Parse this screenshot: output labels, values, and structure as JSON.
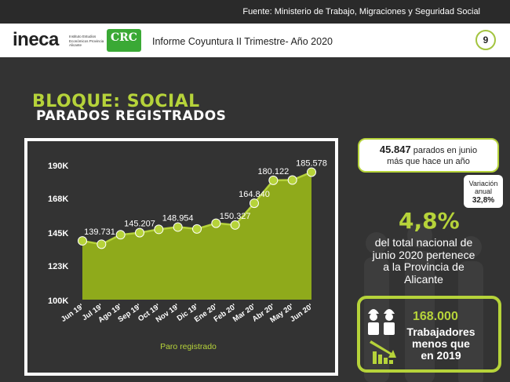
{
  "header": {
    "source": "Fuente: Ministerio de Trabajo, Migraciones y Seguridad Social",
    "logo_ineca": "ineca",
    "logo_ineca_sub": "Instituto Estudios Económicos Provincia Alicante",
    "logo_crc": "CRC",
    "report_title": "Informe Coyuntura II Trimestre- Año 2020",
    "page_number": "9"
  },
  "section": {
    "title": "BLOQUE: SOCIAL",
    "subtitle": "PARADOS REGISTRADOS"
  },
  "callout": {
    "highlight": "45.847",
    "text_a": "parados en junio",
    "text_b": "más que hace un año",
    "variation_label_1": "Variación",
    "variation_label_2": "anual",
    "variation_value": "32,8%"
  },
  "share": {
    "value": "4,8%",
    "line1": "del total nacional de",
    "line2": "junio 2020 pertenece",
    "line3": "a la Provincia de",
    "line4": "Alicante"
  },
  "workers": {
    "value": "168.000",
    "line1": "Trabajadores",
    "line2": "menos que",
    "line3": "en 2019"
  },
  "colors": {
    "accent": "#b6d33a",
    "area": "#8faa1b",
    "background": "#333333"
  },
  "chart_data": {
    "type": "area",
    "categories": [
      "Jun 19'",
      "Jul 19'",
      "Ago 19'",
      "Sep 19'",
      "Oct 19'",
      "Nov 19'",
      "Dic 19'",
      "Ene 20'",
      "Feb 20'",
      "Mar 20'",
      "Abr 20'",
      "May 20'",
      "Jun 20'"
    ],
    "series": [
      {
        "name": "Paro registrado",
        "values": [
          139731,
          137500,
          143800,
          145207,
          147400,
          148954,
          147700,
          151500,
          150327,
          164840,
          180122,
          180300,
          185578
        ]
      }
    ],
    "data_labels": [
      {
        "index": 0,
        "text": "139.731"
      },
      {
        "index": 3,
        "text": "145.207"
      },
      {
        "index": 5,
        "text": "148.954"
      },
      {
        "index": 8,
        "text": "150.327"
      },
      {
        "index": 9,
        "text": "164.840"
      },
      {
        "index": 10,
        "text": "180.122"
      },
      {
        "index": 12,
        "text": "185.578"
      }
    ],
    "yticks": [
      "190K",
      "168K",
      "145K",
      "123K",
      "100K"
    ],
    "ytick_values": [
      190000,
      168000,
      145000,
      123000,
      100000
    ],
    "ylim": [
      100000,
      190000
    ],
    "legend": "Paro registrado",
    "legend_position": "bottom",
    "grid": false
  }
}
